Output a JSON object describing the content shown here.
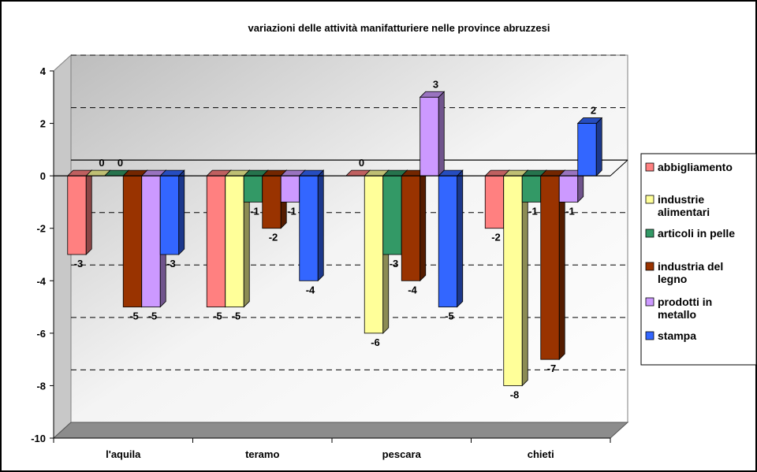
{
  "chart_data": {
    "type": "bar",
    "title": "variazioni delle attività manifatturiere nelle province abruzzesi",
    "categories": [
      "l'aquila",
      "teramo",
      "pescara",
      "chieti"
    ],
    "ylim": [
      -10,
      4
    ],
    "yticks": [
      "4",
      "2",
      "0",
      "-2",
      "-4",
      "-6",
      "-8",
      "-10"
    ],
    "grid": true,
    "legend_position": "right",
    "series": [
      {
        "name": "abbigliamento",
        "name_lines": [
          "abbigliamento"
        ],
        "color": "#ff8080",
        "values": [
          -3,
          -5,
          0,
          -2
        ],
        "labels": [
          "-3",
          "-5",
          "0",
          "-2"
        ]
      },
      {
        "name": "industrie alimentari",
        "name_lines": [
          "industrie",
          "alimentari"
        ],
        "color": "#ffff99",
        "values": [
          0,
          -5,
          -6,
          -8
        ],
        "labels": [
          "0",
          "-5",
          "-6",
          "-8"
        ]
      },
      {
        "name": "articoli in pelle",
        "name_lines": [
          "articoli in pelle"
        ],
        "color": "#339966",
        "values": [
          0,
          -1,
          -3,
          -1
        ],
        "labels": [
          "0",
          "-1",
          "-3",
          "-1"
        ]
      },
      {
        "name": "industria del legno",
        "name_lines": [
          "industria del",
          "legno"
        ],
        "color": "#993300",
        "values": [
          -5,
          -2,
          -4,
          -7
        ],
        "labels": [
          "-5",
          "-2",
          "-4",
          "-7"
        ]
      },
      {
        "name": "prodotti in metallo",
        "name_lines": [
          "prodotti in",
          "metallo"
        ],
        "color": "#cc99ff",
        "values": [
          -5,
          -1,
          3,
          -1
        ],
        "labels": [
          "-5",
          "-1",
          "3",
          "-1"
        ]
      },
      {
        "name": "stampa",
        "name_lines": [
          "stampa"
        ],
        "color": "#3366ff",
        "values": [
          -3,
          -4,
          -5,
          2
        ],
        "labels": [
          "-3",
          "-4",
          "-5",
          "2"
        ]
      }
    ]
  }
}
